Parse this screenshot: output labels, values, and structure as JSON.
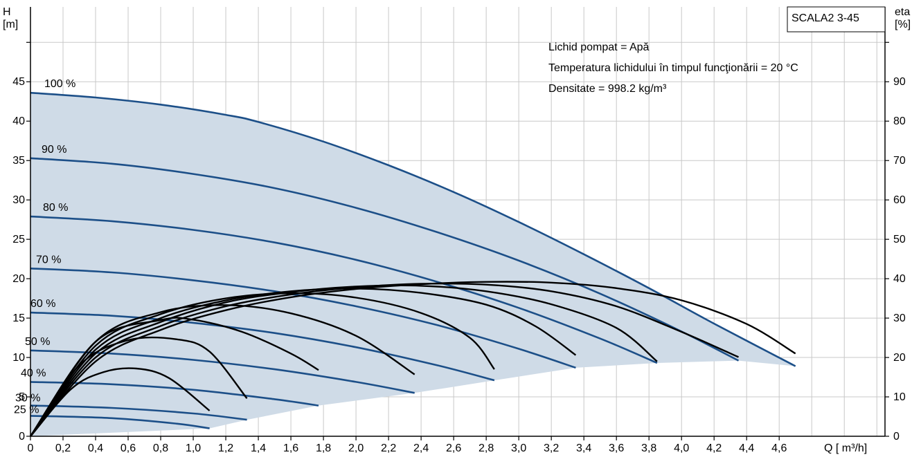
{
  "chart_data": {
    "type": "line",
    "title": "SCALA2 3-45",
    "info_lines": [
      "Lichid pompat = Apă",
      "Temperatura lichidului în timpul funcţionării = 20  °C",
      "Densitate = 998.2  kg/m³"
    ],
    "xlabel": "Q [ m³/h]",
    "ylabel_left": [
      "H",
      "[m]"
    ],
    "ylabel_right": [
      "eta",
      "[%]"
    ],
    "xlim": [
      0,
      5.25
    ],
    "ylim_left": [
      0,
      54.5
    ],
    "ylim_right": [
      0,
      109
    ],
    "x_ticks": [
      "0",
      "0,2",
      "0,4",
      "0,6",
      "0,8",
      "1,0",
      "1,2",
      "1,4",
      "1,6",
      "1,8",
      "2,0",
      "2,2",
      "2,4",
      "2,6",
      "2,8",
      "3,0",
      "3,2",
      "3,4",
      "3,6",
      "3,8",
      "4,0",
      "4,2",
      "4,4",
      "4,6"
    ],
    "x_tick_values": [
      0,
      0.2,
      0.4,
      0.6,
      0.8,
      1.0,
      1.2,
      1.4,
      1.6,
      1.8,
      2.0,
      2.2,
      2.4,
      2.6,
      2.8,
      3.0,
      3.2,
      3.4,
      3.6,
      3.8,
      4.0,
      4.2,
      4.4,
      4.6
    ],
    "y_left_ticks": [
      "0",
      "5",
      "10",
      "15",
      "20",
      "25",
      "30",
      "35",
      "40",
      "45"
    ],
    "y_left_tick_values": [
      0,
      5,
      10,
      15,
      20,
      25,
      30,
      35,
      40,
      45
    ],
    "y_right_ticks": [
      "0",
      "10",
      "20",
      "30",
      "40",
      "50",
      "60",
      "70",
      "80",
      "90"
    ],
    "y_right_tick_values": [
      0,
      10,
      20,
      30,
      40,
      50,
      60,
      70,
      80,
      90
    ],
    "grid": true,
    "colors": {
      "head_curve": "#1c4f88",
      "eta_curve": "#000000",
      "envelope_fill": "#cfdbe7",
      "grid": "#c8c8c8"
    },
    "head_curves": [
      {
        "name": "100 %",
        "points": [
          [
            0,
            43.6
          ],
          [
            0.4,
            43.0
          ],
          [
            0.8,
            42.1
          ],
          [
            1.2,
            40.8
          ],
          [
            1.4,
            39.9
          ],
          [
            1.8,
            37.4
          ],
          [
            2.2,
            34.4
          ],
          [
            2.6,
            31.0
          ],
          [
            3.0,
            27.2
          ],
          [
            3.4,
            23.1
          ],
          [
            3.8,
            18.8
          ],
          [
            4.2,
            14.3
          ],
          [
            4.7,
            8.9
          ]
        ]
      },
      {
        "name": "90 %",
        "points": [
          [
            0,
            35.3
          ],
          [
            0.5,
            34.6
          ],
          [
            1.0,
            33.3
          ],
          [
            1.5,
            31.5
          ],
          [
            2.0,
            29.0
          ],
          [
            2.5,
            25.9
          ],
          [
            3.0,
            22.3
          ],
          [
            3.5,
            18.1
          ],
          [
            4.0,
            13.3
          ],
          [
            4.35,
            9.6
          ]
        ]
      },
      {
        "name": "80 %",
        "points": [
          [
            0,
            27.9
          ],
          [
            0.5,
            27.3
          ],
          [
            1.0,
            26.2
          ],
          [
            1.5,
            24.6
          ],
          [
            2.0,
            22.4
          ],
          [
            2.5,
            19.6
          ],
          [
            3.0,
            16.3
          ],
          [
            3.5,
            12.4
          ],
          [
            3.85,
            9.3
          ]
        ]
      },
      {
        "name": "70 %",
        "points": [
          [
            0,
            21.3
          ],
          [
            0.5,
            20.8
          ],
          [
            1.0,
            19.8
          ],
          [
            1.5,
            18.4
          ],
          [
            2.0,
            16.5
          ],
          [
            2.5,
            14.1
          ],
          [
            3.0,
            11.1
          ],
          [
            3.35,
            8.7
          ]
        ]
      },
      {
        "name": "60 %",
        "points": [
          [
            0,
            15.7
          ],
          [
            0.5,
            15.3
          ],
          [
            1.0,
            14.4
          ],
          [
            1.5,
            13.1
          ],
          [
            2.0,
            11.3
          ],
          [
            2.5,
            9.0
          ],
          [
            2.85,
            7.1
          ]
        ]
      },
      {
        "name": "50 %",
        "points": [
          [
            0,
            10.9
          ],
          [
            0.5,
            10.5
          ],
          [
            1.0,
            9.7
          ],
          [
            1.5,
            8.5
          ],
          [
            2.0,
            6.9
          ],
          [
            2.36,
            5.5
          ]
        ]
      },
      {
        "name": "40 %",
        "points": [
          [
            0,
            6.9
          ],
          [
            0.5,
            6.6
          ],
          [
            1.0,
            5.9
          ],
          [
            1.5,
            4.7
          ],
          [
            1.77,
            3.9
          ]
        ]
      },
      {
        "name": "30 %",
        "points": [
          [
            0,
            3.9
          ],
          [
            0.5,
            3.6
          ],
          [
            1.0,
            2.9
          ],
          [
            1.33,
            2.1
          ]
        ]
      },
      {
        "name": "25 %",
        "points": [
          [
            0,
            2.6
          ],
          [
            0.5,
            2.3
          ],
          [
            0.9,
            1.6
          ],
          [
            1.1,
            1.0
          ]
        ]
      }
    ],
    "envelope_bottom": [
      [
        0,
        0
      ],
      [
        1.1,
        1.0
      ],
      [
        1.33,
        2.1
      ],
      [
        1.77,
        3.9
      ],
      [
        2.36,
        5.5
      ],
      [
        2.85,
        7.1
      ],
      [
        3.35,
        8.7
      ],
      [
        3.85,
        9.3
      ],
      [
        4.35,
        9.6
      ],
      [
        4.7,
        8.9
      ]
    ],
    "eta_curves": [
      {
        "name": "eta 100 %",
        "points": [
          [
            0,
            0
          ],
          [
            0.4,
            19
          ],
          [
            0.8,
            27
          ],
          [
            1.2,
            32
          ],
          [
            1.6,
            35.3
          ],
          [
            2.0,
            37.4
          ],
          [
            2.4,
            38.6
          ],
          [
            2.8,
            39.2
          ],
          [
            3.2,
            39.0
          ],
          [
            3.6,
            37.6
          ],
          [
            4.0,
            34.5
          ],
          [
            4.4,
            28.5
          ],
          [
            4.7,
            21.0
          ]
        ]
      },
      {
        "name": "eta 90 %",
        "points": [
          [
            0,
            0
          ],
          [
            0.4,
            20
          ],
          [
            0.8,
            28
          ],
          [
            1.2,
            33
          ],
          [
            1.6,
            36
          ],
          [
            2.0,
            37.8
          ],
          [
            2.4,
            38.7
          ],
          [
            2.8,
            38.5
          ],
          [
            3.2,
            36.8
          ],
          [
            3.6,
            33.0
          ],
          [
            4.0,
            26.5
          ],
          [
            4.35,
            20.1
          ]
        ]
      },
      {
        "name": "eta 80 %",
        "points": [
          [
            0,
            0
          ],
          [
            0.4,
            21
          ],
          [
            0.8,
            29
          ],
          [
            1.2,
            34
          ],
          [
            1.6,
            36.6
          ],
          [
            2.0,
            38.0
          ],
          [
            2.4,
            38.2
          ],
          [
            2.8,
            36.8
          ],
          [
            3.2,
            33.5
          ],
          [
            3.6,
            27.5
          ],
          [
            3.85,
            19.0
          ]
        ]
      },
      {
        "name": "eta 70 %",
        "points": [
          [
            0,
            0
          ],
          [
            0.4,
            22
          ],
          [
            0.8,
            30
          ],
          [
            1.2,
            34.5
          ],
          [
            1.6,
            36.8
          ],
          [
            2.0,
            37.5
          ],
          [
            2.4,
            36.4
          ],
          [
            2.8,
            33.4
          ],
          [
            3.1,
            28.0
          ],
          [
            3.35,
            20.6
          ]
        ]
      },
      {
        "name": "eta 60 %",
        "points": [
          [
            0,
            0
          ],
          [
            0.4,
            23
          ],
          [
            0.8,
            31
          ],
          [
            1.2,
            35.0
          ],
          [
            1.6,
            36.3
          ],
          [
            2.0,
            35.2
          ],
          [
            2.4,
            31.3
          ],
          [
            2.7,
            25.0
          ],
          [
            2.85,
            17.0
          ]
        ]
      },
      {
        "name": "eta 50 %",
        "points": [
          [
            0,
            0
          ],
          [
            0.4,
            24
          ],
          [
            0.8,
            31.5
          ],
          [
            1.2,
            33.3
          ],
          [
            1.6,
            31.2
          ],
          [
            2.0,
            25.5
          ],
          [
            2.36,
            15.7
          ]
        ]
      },
      {
        "name": "eta 40 %",
        "points": [
          [
            0,
            0
          ],
          [
            0.4,
            24
          ],
          [
            0.8,
            29.5
          ],
          [
            1.0,
            29.6
          ],
          [
            1.3,
            26.5
          ],
          [
            1.6,
            21.0
          ],
          [
            1.77,
            16.8
          ]
        ]
      },
      {
        "name": "eta 30 %",
        "points": [
          [
            0,
            0
          ],
          [
            0.3,
            18
          ],
          [
            0.6,
            24.4
          ],
          [
            0.9,
            24.6
          ],
          [
            1.1,
            21.5
          ],
          [
            1.33,
            9.6
          ]
        ]
      },
      {
        "name": "eta 25 %",
        "points": [
          [
            0,
            0
          ],
          [
            0.25,
            12
          ],
          [
            0.45,
            16.3
          ],
          [
            0.65,
            17.2
          ],
          [
            0.85,
            14.8
          ],
          [
            1.1,
            6.5
          ]
        ]
      }
    ]
  }
}
